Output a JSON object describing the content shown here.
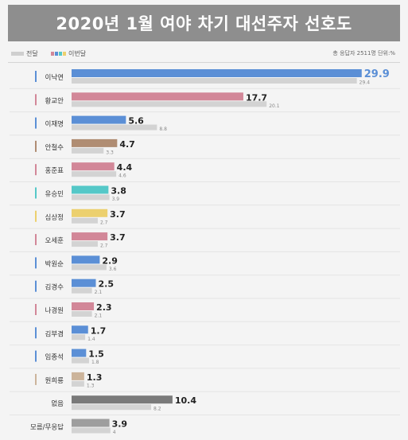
{
  "title": "2020년 1월 여야 차기 대선주자 선호도",
  "legend": {
    "previous": "전달",
    "current": "이번달",
    "note": "총 응답자 2511명  단위:%"
  },
  "colors": {
    "previous": "#d3d3d3",
    "marker": "#5b8fd6"
  },
  "chart_data": {
    "type": "bar",
    "orientation": "horizontal",
    "series": [
      {
        "name": "이번달",
        "key": "current"
      },
      {
        "name": "전달",
        "key": "previous"
      }
    ],
    "xlim": [
      0,
      30
    ],
    "grid": false,
    "legend_position": "top-left",
    "rows": [
      {
        "name": "이낙연",
        "current": 29.9,
        "previous": 29.4,
        "color": "#5b8fd6"
      },
      {
        "name": "황교안",
        "current": 17.7,
        "previous": 20.1,
        "color": "#d28798"
      },
      {
        "name": "이재명",
        "current": 5.6,
        "previous": 8.8,
        "color": "#5b8fd6"
      },
      {
        "name": "안철수",
        "current": 4.7,
        "previous": 3.3,
        "color": "#b08d73"
      },
      {
        "name": "홍준표",
        "current": 4.4,
        "previous": 4.6,
        "color": "#d28798"
      },
      {
        "name": "유승민",
        "current": 3.8,
        "previous": 3.9,
        "color": "#55c8c8"
      },
      {
        "name": "심상정",
        "current": 3.7,
        "previous": 2.7,
        "color": "#ecd06e"
      },
      {
        "name": "오세훈",
        "current": 3.7,
        "previous": 2.7,
        "color": "#d28798"
      },
      {
        "name": "박원순",
        "current": 2.9,
        "previous": 3.6,
        "color": "#5b8fd6"
      },
      {
        "name": "김경수",
        "current": 2.5,
        "previous": 2.1,
        "color": "#5b8fd6"
      },
      {
        "name": "나경원",
        "current": 2.3,
        "previous": 2.1,
        "color": "#d28798"
      },
      {
        "name": "김부겸",
        "current": 1.7,
        "previous": 1.4,
        "color": "#5b8fd6"
      },
      {
        "name": "임종석",
        "current": 1.5,
        "previous": 1.8,
        "color": "#5b8fd6"
      },
      {
        "name": "원희룡",
        "current": 1.3,
        "previous": 1.3,
        "color": "#ccb49b"
      },
      {
        "name": "없음",
        "current": 10.4,
        "previous": 8.2,
        "color": "#7a7a7a"
      },
      {
        "name": "모름/무응답",
        "current": 3.9,
        "previous": 4.0,
        "color": "#9e9e9e"
      }
    ]
  }
}
